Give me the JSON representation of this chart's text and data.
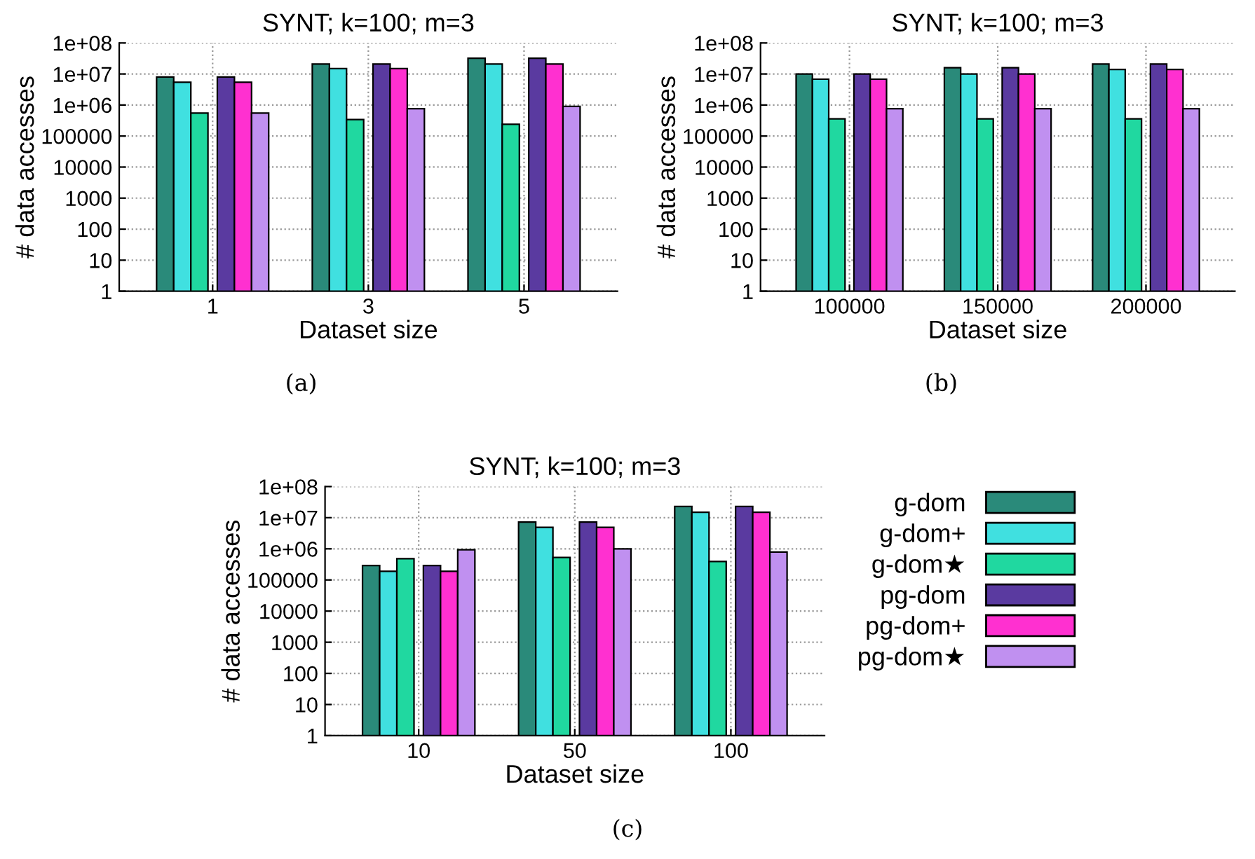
{
  "chart_data": [
    {
      "type": "bar",
      "title": "SYNT; k=100; m=3",
      "xlabel": "Dataset size",
      "ylabel": "# data accesses",
      "categories": [
        "1",
        "3",
        "5"
      ],
      "log": true,
      "grid": true,
      "ylim": [
        1,
        100000000
      ],
      "yticks": [
        1,
        10,
        100,
        1000,
        10000,
        100000,
        {
          "value": 1000000,
          "label": "1e+06"
        },
        {
          "value": 10000000,
          "label": "1e+07"
        },
        {
          "value": 100000000,
          "label": "1e+08"
        }
      ],
      "annotations": [
        "(a)"
      ],
      "series": [
        {
          "color": "#2a8a7a",
          "values": [
            8000000,
            21000000,
            32000000
          ]
        },
        {
          "color": "#40e0e0",
          "values": [
            5400000,
            15000000,
            21000000
          ]
        },
        {
          "color": "#20d8a0",
          "values": [
            550000,
            340000,
            240000
          ]
        },
        {
          "color": "#5a3aa0",
          "values": [
            8000000,
            21000000,
            32000000
          ]
        },
        {
          "color": "#ff30d0",
          "values": [
            5400000,
            15000000,
            21000000
          ]
        },
        {
          "color": "#c090f0",
          "values": [
            550000,
            760000,
            900000
          ]
        }
      ]
    },
    {
      "type": "bar",
      "title": "SYNT; k=100; m=3",
      "xlabel": "Dataset size",
      "ylabel": "# data accesses",
      "categories": [
        "100000",
        "150000",
        "200000"
      ],
      "log": true,
      "grid": true,
      "ylim": [
        1,
        100000000
      ],
      "yticks": [
        1,
        10,
        100,
        1000,
        10000,
        100000,
        {
          "value": 1000000,
          "label": "1e+06"
        },
        {
          "value": 10000000,
          "label": "1e+07"
        },
        {
          "value": 100000000,
          "label": "1e+08"
        }
      ],
      "annotations": [
        "(b)"
      ],
      "series": [
        {
          "color": "#2a8a7a",
          "values": [
            10000000,
            16000000,
            21000000
          ]
        },
        {
          "color": "#40e0e0",
          "values": [
            6800000,
            10000000,
            14000000
          ]
        },
        {
          "color": "#20d8a0",
          "values": [
            360000,
            360000,
            360000
          ]
        },
        {
          "color": "#5a3aa0",
          "values": [
            10000000,
            16000000,
            21000000
          ]
        },
        {
          "color": "#ff30d0",
          "values": [
            6800000,
            10000000,
            14000000
          ]
        },
        {
          "color": "#c090f0",
          "values": [
            760000,
            760000,
            760000
          ]
        }
      ]
    },
    {
      "type": "bar",
      "title": "SYNT; k=100; m=3",
      "xlabel": "Dataset size",
      "ylabel": "# data accesses",
      "categories": [
        "10",
        "50",
        "100"
      ],
      "log": true,
      "grid": true,
      "legend": "right",
      "ylim": [
        1,
        100000000
      ],
      "yticks": [
        1,
        10,
        100,
        1000,
        10000,
        100000,
        {
          "value": 1000000,
          "label": "1e+06"
        },
        {
          "value": 10000000,
          "label": "1e+07"
        },
        {
          "value": 100000000,
          "label": "1e+08"
        }
      ],
      "annotations": [
        "(c)"
      ],
      "series": [
        {
          "name": "g-dom",
          "color": "#2a8a7a",
          "values": [
            290000,
            7200000,
            23000000
          ]
        },
        {
          "name": "g-dom+",
          "color": "#40e0e0",
          "values": [
            190000,
            4900000,
            15000000
          ]
        },
        {
          "name": "g-dom★",
          "color": "#20d8a0",
          "values": [
            480000,
            530000,
            390000
          ]
        },
        {
          "name": "pg-dom",
          "color": "#5a3aa0",
          "values": [
            290000,
            7200000,
            23000000
          ]
        },
        {
          "name": "pg-dom+",
          "color": "#ff30d0",
          "values": [
            190000,
            4900000,
            15000000
          ]
        },
        {
          "name": "pg-dom★",
          "color": "#c090f0",
          "values": [
            930000,
            1000000,
            790000
          ]
        }
      ]
    }
  ]
}
